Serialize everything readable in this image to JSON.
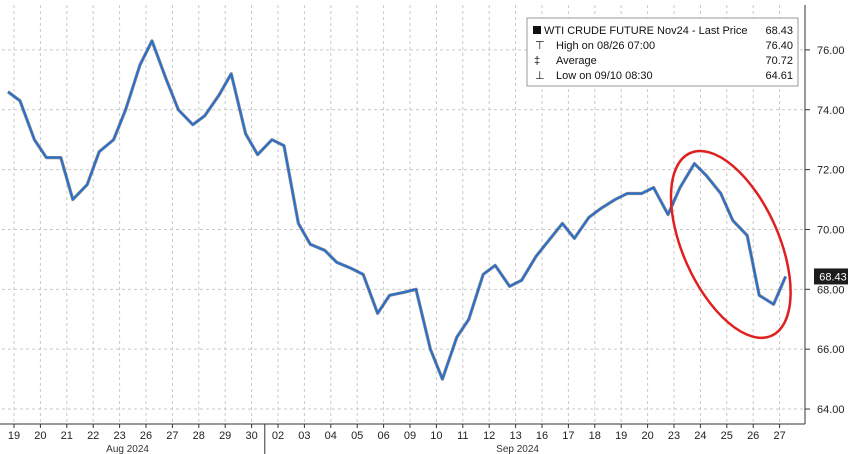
{
  "chart_data": {
    "type": "line",
    "legend": {
      "title": "WTI CRUDE FUTURE Nov24 - Last Price",
      "last_price": "68.43",
      "rows": [
        {
          "label": "High on 08/26 07:00",
          "value": "76.40"
        },
        {
          "label": "Average",
          "value": "70.72"
        },
        {
          "label": "Low on 09/10 08:30",
          "value": "64.61"
        }
      ],
      "placement": "top-right"
    },
    "last_price_tag": "68.43",
    "ylim": [
      63.5,
      77.5
    ],
    "y_ticks": [
      "64.00",
      "66.00",
      "68.00",
      "70.00",
      "72.00",
      "74.00",
      "76.00"
    ],
    "x_ticks": [
      "19",
      "20",
      "21",
      "22",
      "23",
      "26",
      "27",
      "28",
      "29",
      "30",
      "02",
      "03",
      "04",
      "05",
      "06",
      "09",
      "10",
      "11",
      "12",
      "13",
      "16",
      "17",
      "18",
      "19",
      "20",
      "23",
      "24",
      "25",
      "26",
      "27"
    ],
    "months": [
      "Aug 2024",
      "Sep 2024"
    ],
    "series": [
      {
        "color": "#1f6fd6",
        "points": [
          [
            "19",
            74.6
          ],
          [
            "19",
            74.3
          ],
          [
            "20",
            73.0
          ],
          [
            "20",
            72.4
          ],
          [
            "21",
            72.4
          ],
          [
            "21",
            71.0
          ],
          [
            "22",
            71.5
          ],
          [
            "22",
            72.6
          ],
          [
            "23",
            73.0
          ],
          [
            "23",
            74.0
          ],
          [
            "26",
            75.5
          ],
          [
            "26",
            76.3
          ],
          [
            "27",
            75.0
          ],
          [
            "27",
            74.0
          ],
          [
            "28",
            73.5
          ],
          [
            "28",
            73.8
          ],
          [
            "29",
            74.5
          ],
          [
            "29",
            75.2
          ],
          [
            "30",
            73.2
          ],
          [
            "30",
            72.5
          ],
          [
            "02",
            73.0
          ],
          [
            "02",
            72.8
          ],
          [
            "03",
            70.2
          ],
          [
            "03",
            69.5
          ],
          [
            "04",
            69.3
          ],
          [
            "04",
            68.9
          ],
          [
            "05",
            68.7
          ],
          [
            "05",
            68.5
          ],
          [
            "06",
            67.2
          ],
          [
            "06",
            67.8
          ],
          [
            "09",
            67.9
          ],
          [
            "09",
            68.0
          ],
          [
            "10",
            66.0
          ],
          [
            "10",
            65.0
          ],
          [
            "11",
            66.4
          ],
          [
            "11",
            67.0
          ],
          [
            "12",
            68.5
          ],
          [
            "12",
            68.8
          ],
          [
            "13",
            68.1
          ],
          [
            "13",
            68.3
          ],
          [
            "16",
            69.1
          ],
          [
            "16",
            69.6
          ],
          [
            "17",
            70.2
          ],
          [
            "17",
            69.7
          ],
          [
            "18",
            70.4
          ],
          [
            "18",
            70.7
          ],
          [
            "19",
            71.0
          ],
          [
            "19",
            71.2
          ],
          [
            "20",
            71.2
          ],
          [
            "20",
            71.4
          ],
          [
            "23",
            70.5
          ],
          [
            "23",
            71.4
          ],
          [
            "24",
            72.2
          ],
          [
            "24",
            71.8
          ],
          [
            "25",
            71.2
          ],
          [
            "25",
            70.3
          ],
          [
            "26",
            69.8
          ],
          [
            "26",
            67.8
          ],
          [
            "27",
            67.5
          ],
          [
            "27",
            68.43
          ]
        ]
      }
    ],
    "annotation": {
      "type": "ellipse",
      "color": "#e02020"
    },
    "grid": true
  }
}
